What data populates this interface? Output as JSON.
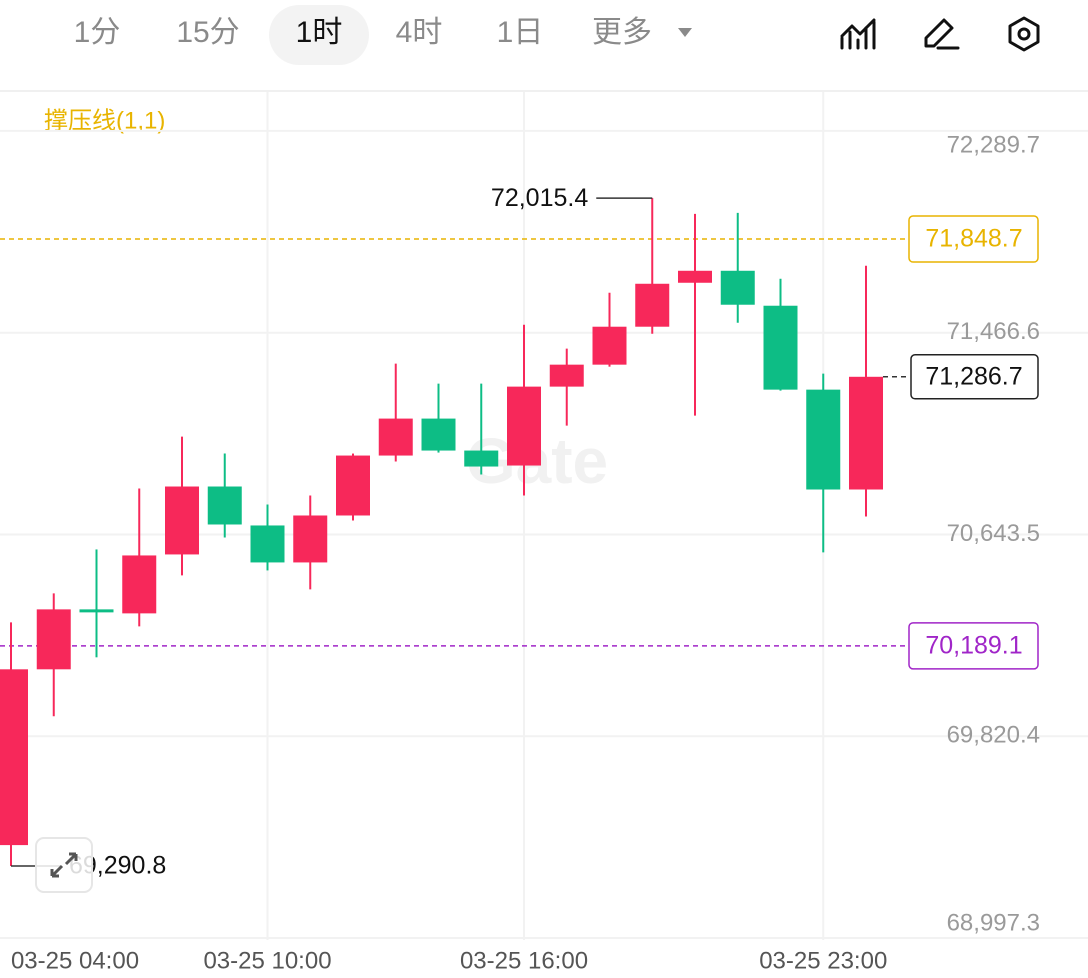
{
  "toolbar": {
    "tabs": [
      "1分",
      "15分",
      "1时",
      "4时",
      "1日",
      "更多"
    ],
    "active": 2
  },
  "chart_data": {
    "type": "candlestick",
    "indicator": "撑压线(1,1)",
    "watermark": "Gate",
    "categories": [
      "03-25 04:00",
      null,
      null,
      null,
      null,
      null,
      "03-25 10:00",
      null,
      null,
      null,
      null,
      null,
      "03-25 16:00",
      null,
      null,
      null,
      null,
      null,
      null,
      "03-25 23:00",
      null
    ],
    "open": [
      69376.3,
      70093.4,
      70337.9,
      70321.6,
      70562.0,
      70839.1,
      70680.2,
      70529.4,
      70720.9,
      70965.4,
      71116.2,
      70985.8,
      70924.7,
      71246.6,
      71336.2,
      71491.0,
      71670.3,
      71719.2,
      71576.6,
      71234.3,
      70826.9
    ],
    "high": [
      70284.9,
      70403.1,
      70582.4,
      70830.9,
      71042.8,
      70973.6,
      70765.7,
      70802.4,
      70973.6,
      71340.3,
      71258.8,
      71258.8,
      71499.2,
      71401.4,
      71629.6,
      72015.4,
      71951.5,
      71955.6,
      71686.6,
      71299.5,
      71739.6
    ],
    "low": [
      69290.8,
      69901.9,
      70142.3,
      70268.6,
      70476.4,
      70631.3,
      70496.8,
      70419.4,
      70700.5,
      70941.0,
      70977.6,
      70888.0,
      70802.4,
      71087.6,
      71328.0,
      71462.5,
      71128.4,
      71507.3,
      71230.3,
      70570.2,
      70716.8
    ],
    "close": [
      70093.4,
      70337.9,
      70325.7,
      70557.9,
      70839.1,
      70684.2,
      70529.4,
      70720.9,
      70965.4,
      71116.2,
      70985.8,
      70920.6,
      71246.6,
      71336.2,
      71491.0,
      71666.2,
      71719.2,
      71580.7,
      71234.3,
      70826.9,
      71286.7
    ],
    "up_color": "#f7285a",
    "down_color": "#0dbd85",
    "ylim": [
      68997.3,
      72448.5
    ],
    "yticks": [
      {
        "value": 72289.7,
        "label": "72,289.7"
      },
      {
        "value": 71466.6,
        "label": "71,466.6"
      },
      {
        "value": 70643.5,
        "label": "70,643.5"
      },
      {
        "value": 69820.4,
        "label": "69,820.4"
      },
      {
        "value": 68997.3,
        "label": "68,997.3"
      }
    ],
    "grid": true,
    "levels": [
      {
        "value": 71848.7,
        "label": "71,848.7",
        "color": "#e8b400"
      },
      {
        "value": 70189.1,
        "label": "70,189.1",
        "color": "#a025c8"
      }
    ],
    "last_price": {
      "value": 71286.7,
      "label": "71,286.7"
    },
    "annotations": [
      {
        "value": 72015.4,
        "label": "72,015.4",
        "index": 15
      },
      {
        "value": 69290.8,
        "label": "69,290.8",
        "index": 0
      }
    ]
  }
}
